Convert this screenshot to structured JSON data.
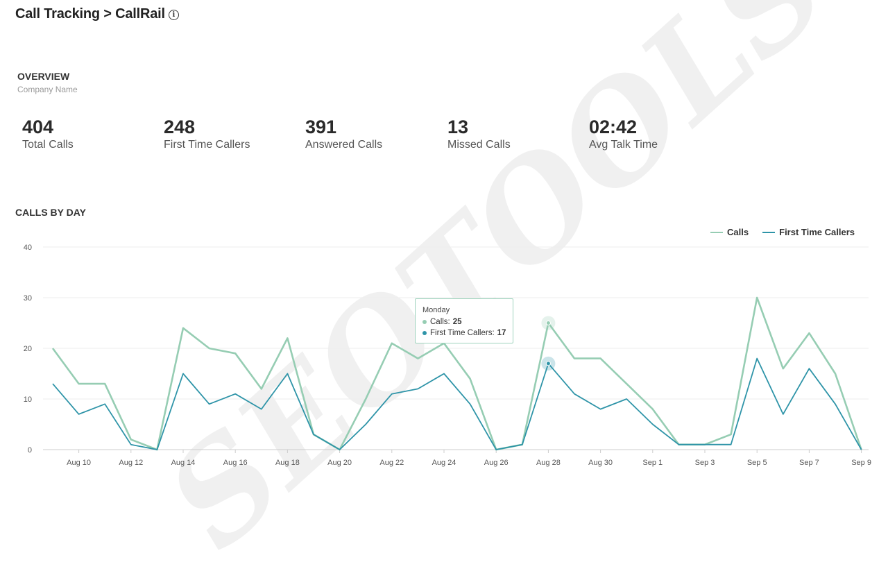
{
  "header": {
    "title": "Call Tracking > CallRail",
    "info_icon": "info-circle-icon"
  },
  "overview": {
    "heading": "OVERVIEW",
    "subheading": "Company Name"
  },
  "stats": [
    {
      "value": "404",
      "label": "Total Calls"
    },
    {
      "value": "248",
      "label": "First Time Callers"
    },
    {
      "value": "391",
      "label": "Answered Calls"
    },
    {
      "value": "13",
      "label": "Missed Calls"
    },
    {
      "value": "02:42",
      "label": "Avg Talk Time"
    }
  ],
  "calls_by_day": {
    "heading": "CALLS BY DAY"
  },
  "tooltip": {
    "day": "Monday",
    "calls_label": "Calls:",
    "calls_value": "25",
    "ftc_label": "First Time Callers:",
    "ftc_value": "17"
  },
  "watermark": "SEOTOOLS",
  "colors": {
    "calls": "#96cdb3",
    "first_time_callers": "#2e94a8",
    "grid": "#eeeeee",
    "axis": "#cccccc"
  },
  "chart_data": {
    "type": "line",
    "x": [
      "Aug 9",
      "Aug 10",
      "Aug 11",
      "Aug 12",
      "Aug 13",
      "Aug 14",
      "Aug 15",
      "Aug 16",
      "Aug 17",
      "Aug 18",
      "Aug 19",
      "Aug 20",
      "Aug 21",
      "Aug 22",
      "Aug 23",
      "Aug 24",
      "Aug 25",
      "Aug 26",
      "Aug 27",
      "Aug 28",
      "Aug 29",
      "Aug 30",
      "Aug 31",
      "Sep 1",
      "Sep 2",
      "Sep 3",
      "Sep 4",
      "Sep 5",
      "Sep 6",
      "Sep 7",
      "Sep 8",
      "Sep 9"
    ],
    "x_tick_labels": [
      "Aug 10",
      "Aug 12",
      "Aug 14",
      "Aug 16",
      "Aug 18",
      "Aug 20",
      "Aug 22",
      "Aug 24",
      "Aug 26",
      "Aug 28",
      "Aug 30",
      "Sep 1",
      "Sep 3",
      "Sep 5",
      "Sep 7",
      "Sep 9"
    ],
    "series": [
      {
        "name": "Calls",
        "color": "#96cdb3",
        "values": [
          20,
          13,
          13,
          2,
          0,
          24,
          20,
          19,
          12,
          22,
          3,
          0,
          10,
          21,
          18,
          21,
          14,
          0,
          1,
          25,
          18,
          18,
          13,
          8,
          1,
          1,
          3,
          30,
          16,
          23,
          15,
          0
        ]
      },
      {
        "name": "First Time Callers",
        "color": "#2e94a8",
        "values": [
          13,
          7,
          9,
          1,
          0,
          15,
          9,
          11,
          8,
          15,
          3,
          0,
          5,
          11,
          12,
          15,
          9,
          0,
          1,
          17,
          11,
          8,
          10,
          5,
          1,
          1,
          1,
          18,
          7,
          16,
          9,
          0
        ]
      }
    ],
    "ylim": [
      0,
      40
    ],
    "y_ticks": [
      0,
      10,
      20,
      30,
      40
    ],
    "grid": true,
    "legend": "top-right",
    "highlighted_point": "Aug 28"
  }
}
